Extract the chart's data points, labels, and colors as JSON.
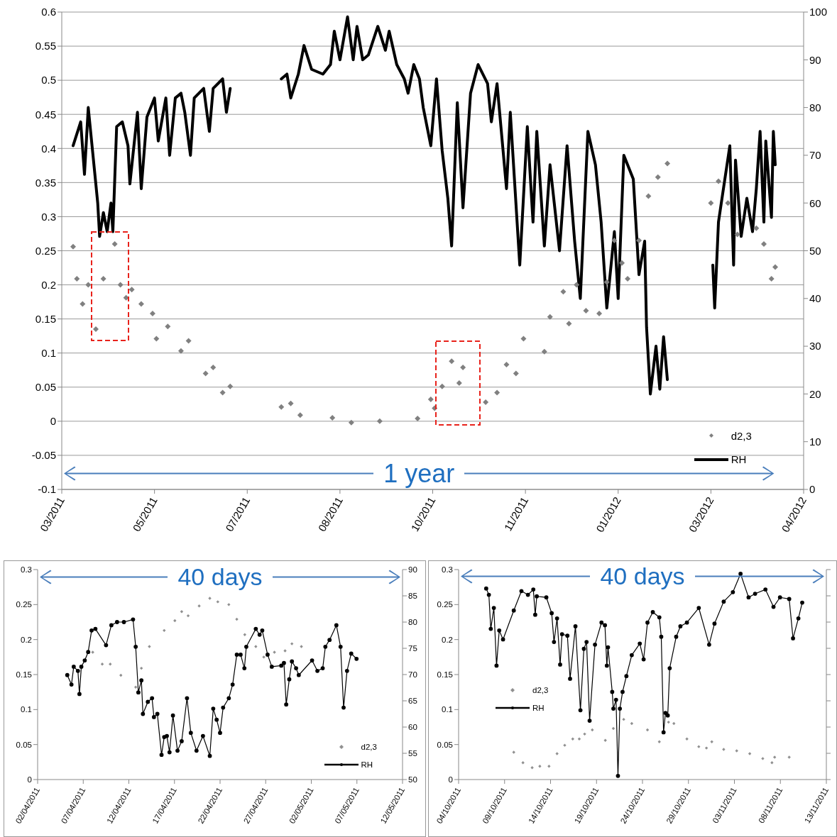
{
  "chart_data": [
    {
      "type": "line",
      "xlim": [
        "2011-03-30",
        "2012-04-25"
      ],
      "xticks": [
        {
          "value": "2011-03-30",
          "label": "03/2011"
        },
        {
          "value": "2011-05-18",
          "label": "05/2011"
        },
        {
          "value": "2011-07-06",
          "label": "07/2011"
        },
        {
          "value": "2011-08-24",
          "label": "08/2011"
        },
        {
          "value": "2011-10-12",
          "label": "10/2011"
        },
        {
          "value": "2011-11-30",
          "label": "11/2011"
        },
        {
          "value": "2012-01-18",
          "label": "01/2012"
        },
        {
          "value": "2012-03-07",
          "label": "03/2012"
        },
        {
          "value": "2012-04-25",
          "label": "04/2012"
        }
      ],
      "ylim": [
        -0.1,
        0.6
      ],
      "yticks": [
        -0.1,
        -0.05,
        0,
        0.05,
        0.1,
        0.15,
        0.2,
        0.25,
        0.3,
        0.35,
        0.4,
        0.45,
        0.5,
        0.55,
        0.6
      ],
      "y2lim": [
        0,
        100
      ],
      "y2ticks": [
        0,
        10,
        20,
        30,
        40,
        50,
        60,
        70,
        80,
        90,
        100
      ],
      "grid": "y",
      "legend": "bottom right",
      "annotations": [
        "1 year"
      ],
      "series": [
        {
          "name": "d2,3",
          "type": "scatter",
          "marker": "diamond",
          "color": "#808080",
          "x": [
            "2011-04-05",
            "2011-04-07",
            "2011-04-10",
            "2011-04-13",
            "2011-04-17",
            "2011-04-21",
            "2011-04-27",
            "2011-04-30",
            "2011-05-03",
            "2011-05-06",
            "2011-05-11",
            "2011-05-17",
            "2011-05-19",
            "2011-05-25",
            "2011-06-01",
            "2011-06-05",
            "2011-06-14",
            "2011-06-18",
            "2011-06-23",
            "2011-06-27",
            "2011-07-24",
            "2011-07-29",
            "2011-08-03",
            "2011-08-20",
            "2011-08-30",
            "2011-09-14",
            "2011-10-04",
            "2011-10-11",
            "2011-10-13",
            "2011-10-17",
            "2011-10-22",
            "2011-10-26",
            "2011-10-28",
            "2011-11-09",
            "2011-11-15",
            "2011-11-20",
            "2011-11-25",
            "2011-11-29",
            "2011-12-10",
            "2011-12-13",
            "2011-12-20",
            "2011-12-23",
            "2011-12-27",
            "2012-01-01",
            "2012-01-08",
            "2012-01-12",
            "2012-01-16",
            "2012-01-20",
            "2012-01-23",
            "2012-01-29",
            "2012-02-03",
            "2012-02-08",
            "2012-02-13",
            "2012-03-07",
            "2012-03-11",
            "2012-03-16",
            "2012-03-21",
            "2012-03-31",
            "2012-04-04",
            "2012-04-08",
            "2012-04-10"
          ],
          "values": [
            0.256,
            0.209,
            0.172,
            0.2,
            0.135,
            0.209,
            0.26,
            0.2,
            0.181,
            0.193,
            0.172,
            0.158,
            0.121,
            0.139,
            0.103,
            0.118,
            0.07,
            0.079,
            0.042,
            0.051,
            0.021,
            0.026,
            0.009,
            0.005,
            -0.002,
            0,
            0.004,
            0.032,
            0.019,
            0.051,
            0.088,
            0.056,
            0.079,
            0.028,
            0.042,
            0.083,
            0.07,
            0.121,
            0.102,
            0.153,
            0.19,
            0.143,
            0.2,
            0.162,
            0.158,
            0.204,
            0.265,
            0.232,
            0.209,
            0.265,
            0.33,
            0.358,
            0.378,
            0.32,
            0.352,
            0.32,
            0.274,
            0.283,
            0.26,
            0.209,
            0.226
          ]
        },
        {
          "name": "RH",
          "type": "line",
          "axis": "y2",
          "marker": "none",
          "line_style": "solid",
          "color": "#000000",
          "x": [
            "2011-04-05",
            "2011-04-09",
            "2011-04-11",
            "2011-04-13",
            "2011-04-18",
            "2011-04-19",
            "2011-04-21",
            "2011-04-23",
            "2011-04-25",
            "2011-04-26",
            "2011-04-28",
            "2011-05-01",
            "2011-05-04",
            "2011-05-05",
            "2011-05-09",
            "2011-05-11",
            "2011-05-14",
            "2011-05-18",
            "2011-05-20",
            "2011-05-24",
            "2011-05-26",
            "2011-05-29",
            "2011-06-01",
            "2011-06-03",
            "2011-06-06",
            "2011-06-08",
            "2011-06-13",
            "2011-06-16",
            "2011-06-18",
            "2011-06-23",
            "2011-06-25",
            "2011-06-27",
            "2011-07-10",
            "2011-07-24",
            "2011-07-27",
            "2011-07-29",
            "2011-08-02",
            "2011-08-05",
            "2011-08-09",
            "2011-08-15",
            "2011-08-19",
            "2011-08-21",
            "2011-08-24",
            "2011-08-28",
            "2011-08-31",
            "2011-09-02",
            "2011-09-05",
            "2011-09-08",
            "2011-09-13",
            "2011-09-17",
            "2011-09-19",
            "2011-09-23",
            "2011-09-27",
            "2011-09-29",
            "2011-10-02",
            "2011-10-05",
            "2011-10-07",
            "2011-10-11",
            "2011-10-14",
            "2011-10-17",
            "2011-10-20",
            "2011-10-22",
            "2011-10-25",
            "2011-10-28",
            "2011-11-01",
            "2011-11-05",
            "2011-11-10",
            "2011-11-12",
            "2011-11-15",
            "2011-11-20",
            "2011-11-22",
            "2011-11-27",
            "2011-12-01",
            "2011-12-04",
            "2011-12-06",
            "2011-12-10",
            "2011-12-13",
            "2011-12-18",
            "2011-12-22",
            "2011-12-26",
            "2011-12-29",
            "2012-01-02",
            "2012-01-06",
            "2012-01-09",
            "2012-01-12",
            "2012-01-16",
            "2012-01-18",
            "2012-01-21",
            "2012-01-26",
            "2012-01-29",
            "2012-02-01",
            "2012-02-02",
            "2012-02-04",
            "2012-02-07",
            "2012-02-09",
            "2012-02-11",
            "2012-02-13",
            "2012-02-25",
            "2012-03-08",
            "2012-03-09",
            "2012-03-11",
            "2012-03-17",
            "2012-03-19",
            "2012-03-20",
            "2012-03-23",
            "2012-03-26",
            "2012-03-29",
            "2012-03-31",
            "2012-04-02",
            "2012-04-04",
            "2012-04-05",
            "2012-04-08",
            "2012-04-09",
            "2012-04-10"
          ],
          "values": [
            72,
            77,
            66,
            80,
            60,
            53,
            58,
            54,
            60,
            54,
            76,
            77,
            72,
            64,
            79,
            63,
            78,
            82,
            73,
            82,
            70,
            82,
            83,
            79,
            70,
            82,
            84,
            75,
            84,
            86,
            79,
            84,
            null,
            86,
            87,
            82,
            87,
            93,
            88,
            87,
            89,
            96,
            90,
            99,
            90,
            97,
            90,
            91,
            97,
            92,
            96,
            89,
            86,
            83,
            89,
            86,
            80,
            72,
            86,
            71,
            61,
            51,
            81,
            59,
            83,
            89,
            85,
            77,
            85,
            63,
            79,
            47,
            76,
            56,
            75,
            51,
            68,
            50,
            72,
            52,
            40,
            75,
            68,
            56,
            38,
            54,
            40,
            70,
            65,
            45,
            52,
            34,
            20,
            30,
            21,
            32,
            23,
            null,
            47,
            38,
            56,
            72,
            47,
            69,
            53,
            61,
            54,
            63,
            75,
            56,
            73,
            57,
            75,
            68
          ]
        }
      ]
    },
    {
      "type": "line",
      "xlim": [
        "2011-04-02",
        "2011-05-12"
      ],
      "xticks": [
        {
          "value": "2011-04-02",
          "label": "02/04/2011"
        },
        {
          "value": "2011-04-07",
          "label": "07/04/2011"
        },
        {
          "value": "2011-04-12",
          "label": "12/04/2011"
        },
        {
          "value": "2011-04-17",
          "label": "17/04/2011"
        },
        {
          "value": "2011-04-22",
          "label": "22/04/2011"
        },
        {
          "value": "2011-04-27",
          "label": "27/04/2011"
        },
        {
          "value": "2011-05-02",
          "label": "02/05/2011"
        },
        {
          "value": "2011-05-07",
          "label": "07/05/2011"
        },
        {
          "value": "2011-05-12",
          "label": "12/05/2011"
        }
      ],
      "ylim": [
        0,
        0.3
      ],
      "yticks": [
        0,
        0.05,
        0.1,
        0.15,
        0.2,
        0.25,
        0.3
      ],
      "y2lim": [
        50,
        90
      ],
      "y2ticks": [
        50,
        55,
        60,
        65,
        70,
        75,
        80,
        85,
        90
      ],
      "legend": "bottom right",
      "annotations": [
        "40 days"
      ],
      "series": [
        {
          "name": "d2,3",
          "type": "scatter",
          "marker": "diamond",
          "color": "#909090",
          "x": [
            "2011-04-08T01:00",
            "2011-04-09T02:00",
            "2011-04-09T23:00",
            "2011-04-11T03:00",
            "2011-04-12T18:00",
            "2011-04-13T09:00",
            "2011-04-14T06:00",
            "2011-04-15T21:00",
            "2011-04-17T01:00",
            "2011-04-17T19:00",
            "2011-04-18T12:00",
            "2011-04-19T17:00",
            "2011-04-20T21:00",
            "2011-04-21T18:00",
            "2011-04-22T23:00",
            "2011-04-23T20:00",
            "2011-04-24T17:00",
            "2011-04-25T22:00",
            "2011-04-26T19:00",
            "2011-04-27T23:00",
            "2011-04-29T03:00",
            "2011-04-29T21:00",
            "2011-04-30T22:00"
          ],
          "values": [
            0.182,
            0.165,
            0.165,
            0.149,
            0.132,
            0.159,
            0.19,
            0.213,
            0.227,
            0.24,
            0.234,
            0.248,
            0.259,
            0.254,
            0.25,
            0.229,
            0.207,
            0.19,
            0.175,
            0.182,
            0.184,
            0.194,
            0.19
          ]
        },
        {
          "name": "RH",
          "type": "line",
          "axis": "y2",
          "marker": "circle",
          "line_style": "solid",
          "color": "#000000",
          "x": [
            "2011-04-05T06:00",
            "2011-04-05T17:00",
            "2011-04-05T23:00",
            "2011-04-06T10:00",
            "2011-04-06T14:00",
            "2011-04-06T19:00",
            "2011-04-07T04:00",
            "2011-04-07T13:00",
            "2011-04-07T22:00",
            "2011-04-08T08:00",
            "2011-04-09T12:00",
            "2011-04-10T02:00",
            "2011-04-10T17:00",
            "2011-04-11T11:00",
            "2011-04-12T11:00",
            "2011-04-12T18:00",
            "2011-04-13T01:00",
            "2011-04-13T09:00",
            "2011-04-13T13:00",
            "2011-04-14T02:00",
            "2011-04-14T13:00",
            "2011-04-14T18:00",
            "2011-04-15T03:00",
            "2011-04-15T14:00",
            "2011-04-15T21:00",
            "2011-04-16T04:00",
            "2011-04-16T11:00",
            "2011-04-16T20:00",
            "2011-04-17T08:00",
            "2011-04-17T19:00",
            "2011-04-18T09:00",
            "2011-04-18T19:00",
            "2011-04-19T10:00",
            "2011-04-20T03:00",
            "2011-04-20T21:00",
            "2011-04-21T06:00",
            "2011-04-21T15:00",
            "2011-04-22T00:00",
            "2011-04-22T08:00",
            "2011-04-22T23:00",
            "2011-04-23T09:00",
            "2011-04-23T20:00",
            "2011-04-24T06:00",
            "2011-04-24T16:00",
            "2011-04-24T21:00",
            "2011-04-25T22:00",
            "2011-04-26T08:00",
            "2011-04-26T15:00",
            "2011-04-27T05:00",
            "2011-04-27T16:00",
            "2011-04-28T17:00",
            "2011-04-29T00:00",
            "2011-04-29T06:00",
            "2011-04-29T14:00",
            "2011-04-29T21:00",
            "2011-04-30T08:00",
            "2011-04-30T15:00",
            "2011-05-02T02:00",
            "2011-05-02T16:00",
            "2011-05-03T06:00",
            "2011-05-03T13:00",
            "2011-05-04T00:00",
            "2011-05-04T18:00",
            "2011-05-05T05:00",
            "2011-05-05T13:00",
            "2011-05-05T22:00",
            "2011-05-06T09:00",
            "2011-05-06T23:00"
          ],
          "values": [
            69.9,
            68.1,
            71.5,
            70.7,
            66.3,
            71.5,
            72.7,
            74.3,
            78.4,
            78.7,
            75.6,
            79.4,
            80,
            80,
            80.5,
            75.3,
            66.6,
            68.9,
            62.5,
            64.8,
            65.5,
            61.9,
            62.5,
            54.7,
            58.1,
            58.3,
            55.2,
            62.2,
            55.5,
            57.3,
            65.5,
            58.9,
            55.5,
            58.3,
            54.5,
            63.5,
            61.4,
            58.9,
            63.7,
            65.5,
            68.1,
            73.8,
            73.8,
            71.2,
            75.3,
            78.7,
            77.6,
            78.4,
            73.8,
            71.5,
            71.7,
            72.2,
            64.3,
            69.1,
            72.5,
            71.2,
            69.9,
            72.7,
            70.7,
            71.2,
            75.3,
            76.6,
            79.4,
            75.3,
            63.7,
            70.7,
            74,
            73
          ]
        }
      ]
    },
    {
      "type": "line",
      "xlim": [
        "2011-10-04",
        "2011-11-13"
      ],
      "xticks": [
        {
          "value": "2011-10-04",
          "label": "04/10/2011"
        },
        {
          "value": "2011-10-09",
          "label": "09/10/2011"
        },
        {
          "value": "2011-10-14",
          "label": "14/10/2011"
        },
        {
          "value": "2011-10-19",
          "label": "19/10/2011"
        },
        {
          "value": "2011-10-24",
          "label": "24/10/2011"
        },
        {
          "value": "2011-10-29",
          "label": "29/10/2011"
        },
        {
          "value": "2011-11-03",
          "label": "03/11/2011"
        },
        {
          "value": "2011-11-08",
          "label": "08/11/2011"
        },
        {
          "value": "2011-11-13",
          "label": "13/11/2011"
        }
      ],
      "ylim": [
        0,
        0.3
      ],
      "yticks": [
        0,
        0.05,
        0.1,
        0.15,
        0.2,
        0.25,
        0.3
      ],
      "y2lim": [
        50,
        90
      ],
      "tick_labels": "xy",
      "legend": "left",
      "annotations": [
        "40 days"
      ],
      "series": [
        {
          "name": "d2,3",
          "type": "scatter",
          "marker": "diamond",
          "color": "#909090",
          "x": [
            "2011-10-10T00:00",
            "2011-10-11T00:00",
            "2011-10-12T00:00",
            "2011-10-12T20:00",
            "2011-10-13T20:00",
            "2011-10-14T17:00",
            "2011-10-15T13:00",
            "2011-10-16T10:00",
            "2011-10-17T03:00",
            "2011-10-17T17:00",
            "2011-10-18T13:00",
            "2011-10-19T23:00",
            "2011-10-20T20:00",
            "2011-10-21T23:00",
            "2011-10-22T20:00",
            "2011-10-24T13:00",
            "2011-10-25T20:00",
            "2011-10-26T20:00",
            "2011-10-27T10:00",
            "2011-10-28T20:00",
            "2011-10-30T03:00",
            "2011-10-30T23:00",
            "2011-10-31T13:00",
            "2011-11-01T20:00",
            "2011-11-03T06:00",
            "2011-11-04T16:00",
            "2011-11-06T02:00",
            "2011-11-07T02:00",
            "2011-11-07T09:00",
            "2011-11-08T23:00"
          ],
          "values": [
            0.039,
            0.024,
            0.017,
            0.019,
            0.019,
            0.037,
            0.049,
            0.058,
            0.058,
            0.065,
            0.071,
            0.056,
            0.073,
            0.086,
            0.08,
            0.071,
            0.054,
            0.082,
            0.08,
            0.058,
            0.047,
            0.045,
            0.054,
            0.043,
            0.041,
            0.037,
            0.03,
            0.024,
            0.032,
            0.032
          ]
        },
        {
          "name": "RH",
          "type": "line",
          "axis": "y2",
          "marker": "circle",
          "line_style": "solid",
          "color": "#000000",
          "x": [
            "2011-10-07T00:00",
            "2011-10-07T07:00",
            "2011-10-07T12:00",
            "2011-10-07T20:00",
            "2011-10-08T03:00",
            "2011-10-08T10:00",
            "2011-10-08T20:00",
            "2011-10-10T00:00",
            "2011-10-10T20:00",
            "2011-10-11T13:00",
            "2011-10-12T03:00",
            "2011-10-12T08:00",
            "2011-10-12T12:00",
            "2011-10-13T13:00",
            "2011-10-14T03:00",
            "2011-10-14T09:00",
            "2011-10-14T17:00",
            "2011-10-15T01:00",
            "2011-10-15T06:00",
            "2011-10-15T20:00",
            "2011-10-16T03:00",
            "2011-10-16T17:00",
            "2011-10-17T06:00",
            "2011-10-17T15:00",
            "2011-10-17T22:00",
            "2011-10-18T06:00",
            "2011-10-18T20:00",
            "2011-10-19T13:00",
            "2011-10-19T22:00",
            "2011-10-20T03:00",
            "2011-10-20T06:00",
            "2011-10-20T17:00",
            "2011-10-20T20:00",
            "2011-10-21T03:00",
            "2011-10-21T08:00",
            "2011-10-21T13:00",
            "2011-10-21T20:00",
            "2011-10-22T06:00",
            "2011-10-22T20:00",
            "2011-10-23T17:00",
            "2011-10-24T03:00",
            "2011-10-24T13:00",
            "2011-10-25T03:00",
            "2011-10-25T20:00",
            "2011-10-26T01:00",
            "2011-10-26T07:00",
            "2011-10-26T12:00",
            "2011-10-26T18:00",
            "2011-10-26T23:00",
            "2011-10-27T16:00",
            "2011-10-28T03:00",
            "2011-10-28T20:00",
            "2011-10-30T03:00",
            "2011-10-31T06:00",
            "2011-10-31T20:00",
            "2011-11-01T20:00",
            "2011-11-02T20:00",
            "2011-11-03T16:00",
            "2011-11-04T13:00",
            "2011-11-05T06:00",
            "2011-11-06T09:00",
            "2011-11-07T06:00",
            "2011-11-07T23:00",
            "2011-11-08T23:00",
            "2011-11-09T09:00",
            "2011-11-09T23:00",
            "2011-11-10T09:00"
          ],
          "values": [
            86.4,
            85.2,
            78.7,
            82.7,
            71.7,
            78.4,
            76.7,
            82.2,
            85.9,
            85.2,
            86.2,
            81.4,
            84.9,
            84.7,
            81.7,
            76.2,
            80.7,
            71.9,
            77.7,
            77.4,
            69.2,
            79.2,
            63.2,
            74.9,
            76.2,
            61.2,
            75.7,
            79.9,
            79.4,
            71.7,
            75.2,
            66.7,
            63.5,
            65.2,
            50.7,
            63.5,
            66.7,
            69.7,
            73.7,
            75.9,
            72.9,
            79.9,
            81.9,
            80.9,
            77.2,
            59,
            62.7,
            62.2,
            71.2,
            77.2,
            79.2,
            79.9,
            82.7,
            75.7,
            79.7,
            83.9,
            85.7,
            89.2,
            84.7,
            85.4,
            86.2,
            82.9,
            84.7,
            84.4,
            76.9,
            80.7,
            83.7
          ]
        }
      ]
    }
  ]
}
